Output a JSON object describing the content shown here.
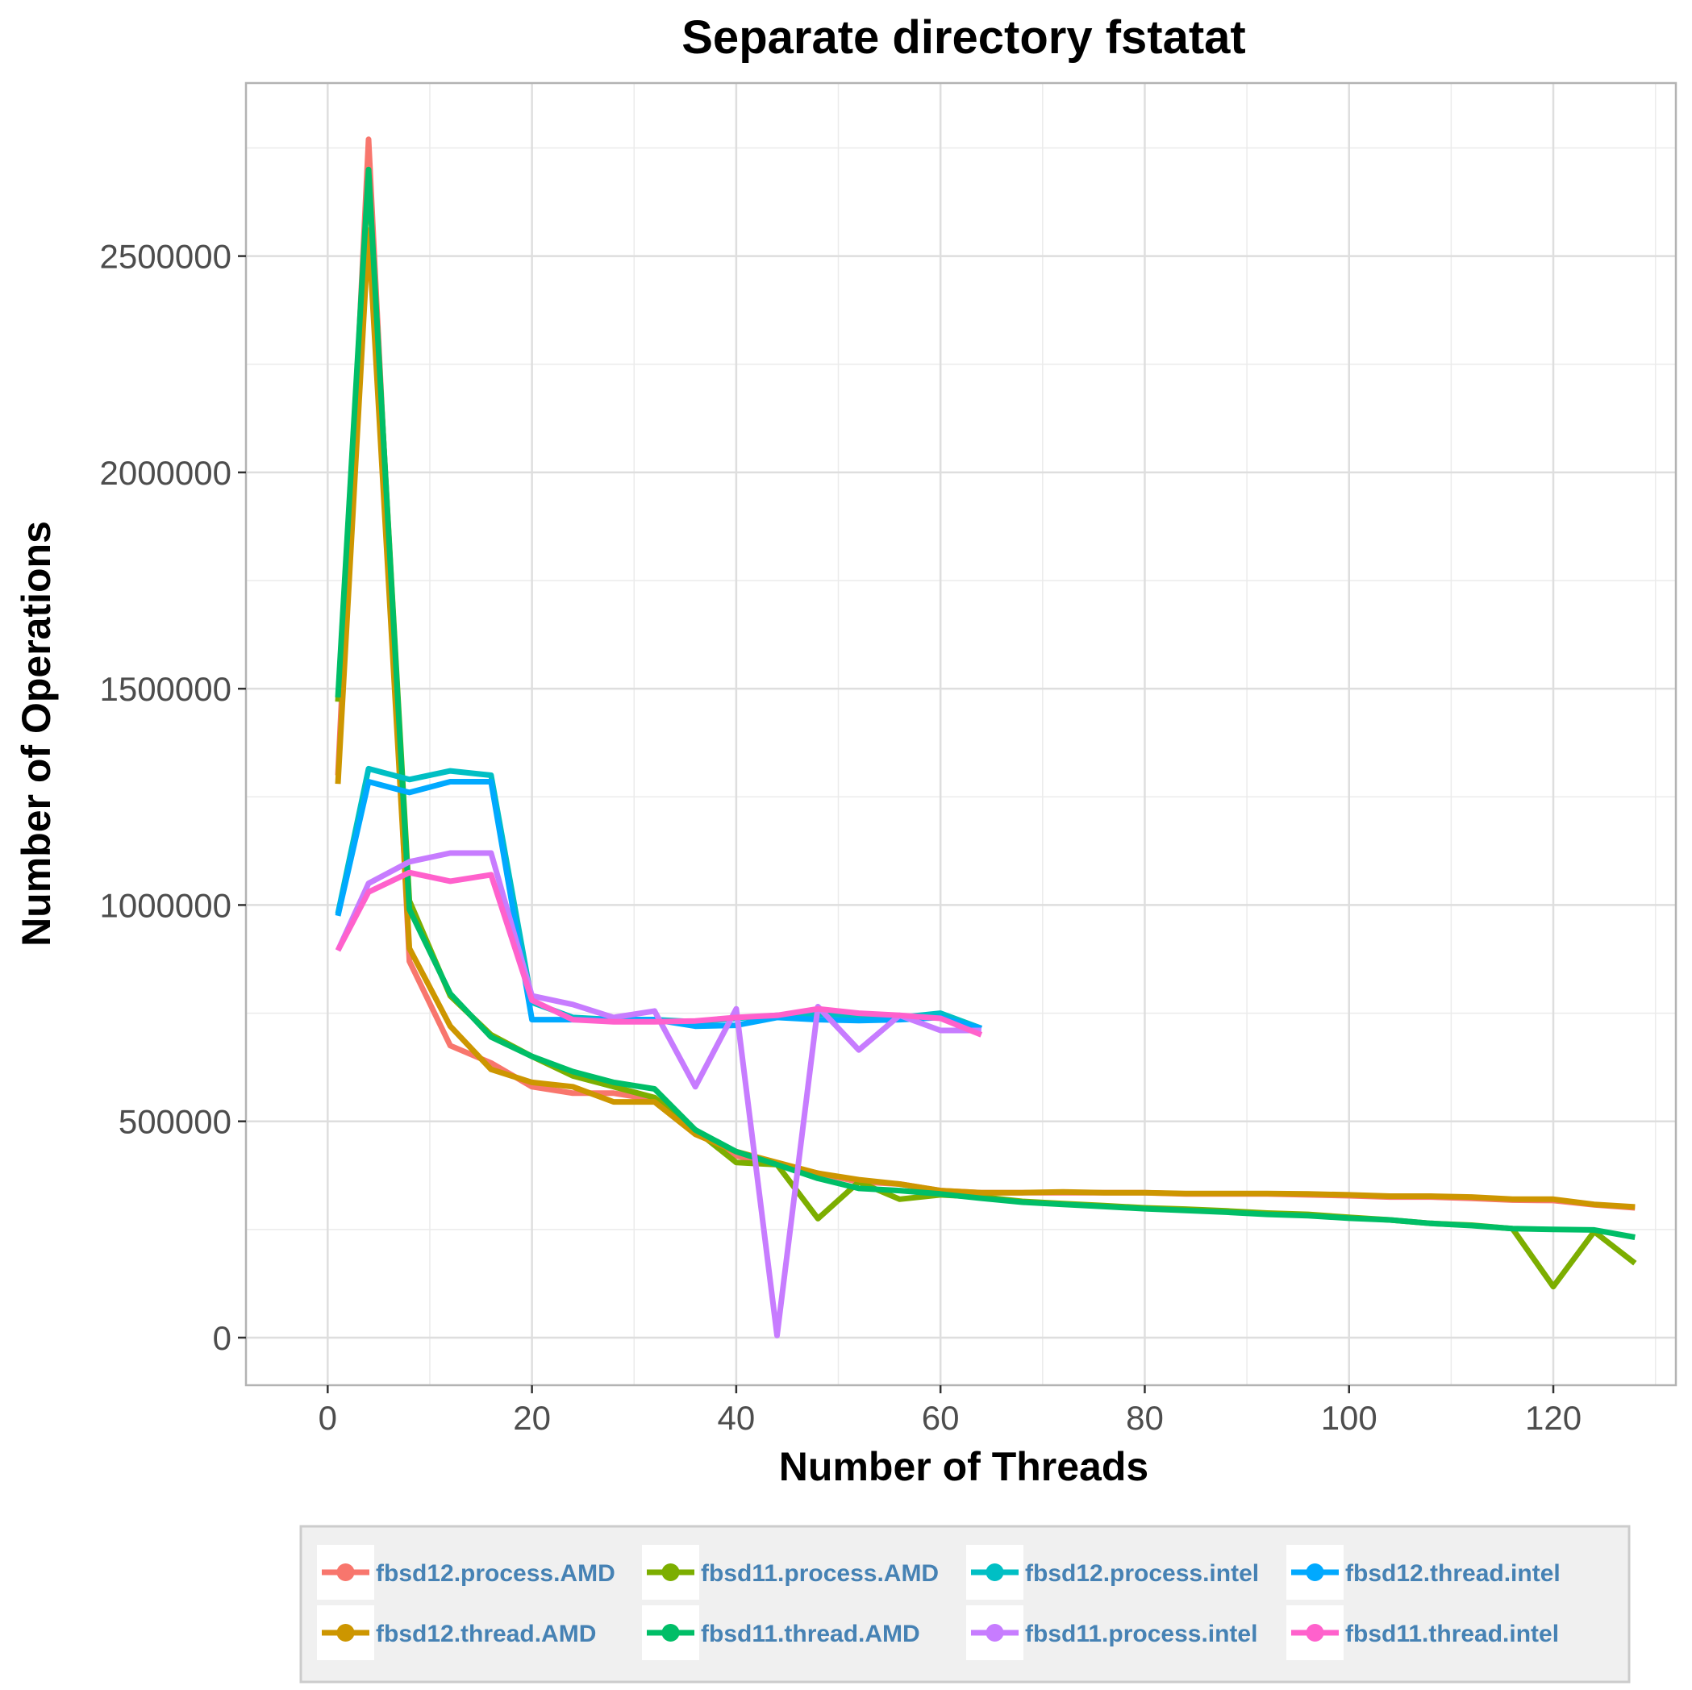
{
  "chart_data": {
    "type": "line",
    "title": "Separate directory fstatat",
    "xlabel": "Number of Threads",
    "ylabel": "Number of Operations",
    "xlim": [
      -8,
      132
    ],
    "ylim": [
      -110000,
      2900000
    ],
    "x_ticks": [
      0,
      20,
      40,
      60,
      80,
      100,
      120
    ],
    "y_ticks": [
      0,
      500000,
      1000000,
      1500000,
      2000000,
      2500000
    ],
    "x_tick_labels": [
      "0",
      "20",
      "40",
      "60",
      "80",
      "100",
      "120"
    ],
    "y_tick_labels": [
      "0",
      "500000",
      "1000000",
      "1500000",
      "2000000",
      "2500000"
    ],
    "grid": true,
    "legend_position": "bottom",
    "series": [
      {
        "name": "fbsd12.process.AMD",
        "color": "#F8766D",
        "x": [
          1,
          4,
          8,
          12,
          16,
          20,
          24,
          28,
          32,
          36,
          40,
          44,
          48,
          52,
          56,
          60,
          64,
          68,
          72,
          76,
          80,
          84,
          88,
          92,
          96,
          100,
          104,
          108,
          112,
          116,
          120,
          124,
          128
        ],
        "y": [
          1300000,
          2770000,
          870000,
          675000,
          635000,
          580000,
          565000,
          565000,
          550000,
          480000,
          420000,
          400000,
          380000,
          360000,
          355000,
          340000,
          335000,
          335000,
          335000,
          335000,
          335000,
          332000,
          332000,
          332000,
          330000,
          328000,
          325000,
          325000,
          322000,
          318000,
          317000,
          307000,
          300000
        ]
      },
      {
        "name": "fbsd11.process.AMD",
        "color": "#7CAE00",
        "x": [
          1,
          4,
          8,
          12,
          16,
          20,
          24,
          28,
          32,
          36,
          40,
          44,
          48,
          52,
          56,
          60,
          64,
          68,
          72,
          76,
          80,
          84,
          88,
          92,
          96,
          100,
          104,
          108,
          112,
          116,
          120,
          124,
          128
        ],
        "y": [
          1470000,
          2690000,
          1010000,
          790000,
          700000,
          650000,
          605000,
          580000,
          555000,
          480000,
          405000,
          400000,
          275000,
          360000,
          320000,
          330000,
          325000,
          315000,
          310000,
          305000,
          300000,
          297000,
          293000,
          288000,
          285000,
          278000,
          272000,
          264000,
          260000,
          252000,
          118000,
          245000,
          172000
        ]
      },
      {
        "name": "fbsd12.thread.AMD",
        "color": "#CD9600",
        "x": [
          1,
          4,
          8,
          12,
          16,
          20,
          24,
          28,
          32,
          36,
          40,
          44,
          48,
          52,
          56,
          60,
          64,
          68,
          72,
          76,
          80,
          84,
          88,
          92,
          96,
          100,
          104,
          108,
          112,
          116,
          120,
          124,
          128
        ],
        "y": [
          1280000,
          2560000,
          900000,
          720000,
          620000,
          590000,
          580000,
          545000,
          545000,
          470000,
          430000,
          405000,
          380000,
          365000,
          355000,
          340000,
          335000,
          335000,
          337000,
          335000,
          335000,
          333000,
          333000,
          333000,
          332000,
          330000,
          327000,
          327000,
          325000,
          320000,
          320000,
          308000,
          302000
        ]
      },
      {
        "name": "fbsd11.thread.AMD",
        "color": "#00BE67",
        "x": [
          1,
          4,
          8,
          12,
          16,
          20,
          24,
          28,
          32,
          36,
          40,
          44,
          48,
          52,
          56,
          60,
          64,
          68,
          72,
          76,
          80,
          84,
          88,
          92,
          96,
          100,
          104,
          108,
          112,
          116,
          120,
          124,
          128
        ],
        "y": [
          1480000,
          2700000,
          990000,
          795000,
          695000,
          650000,
          615000,
          590000,
          575000,
          480000,
          430000,
          400000,
          368000,
          345000,
          340000,
          332000,
          322000,
          313000,
          308000,
          303000,
          298000,
          294000,
          290000,
          285000,
          282000,
          276000,
          272000,
          264000,
          259000,
          252000,
          250000,
          249000,
          232000
        ]
      },
      {
        "name": "fbsd12.process.intel",
        "color": "#00BFC4",
        "x": [
          1,
          4,
          8,
          12,
          16,
          20,
          24,
          28,
          32,
          36,
          40,
          44,
          48,
          52,
          56,
          60,
          64
        ],
        "y": [
          980000,
          1315000,
          1290000,
          1310000,
          1300000,
          775000,
          740000,
          735000,
          735000,
          730000,
          738000,
          745000,
          748000,
          745000,
          740000,
          750000,
          715000
        ]
      },
      {
        "name": "fbsd12.thread.intel",
        "color": "#00A9FF",
        "x": [
          1,
          4,
          8,
          12,
          16,
          20,
          24,
          28,
          32,
          36,
          40,
          44,
          48,
          52,
          56,
          60,
          64
        ],
        "y": [
          975000,
          1285000,
          1260000,
          1285000,
          1285000,
          735000,
          735000,
          735000,
          735000,
          720000,
          722000,
          740000,
          735000,
          733000,
          735000,
          740000,
          715000
        ]
      },
      {
        "name": "fbsd11.process.intel",
        "color": "#C77CFF",
        "x": [
          1,
          4,
          8,
          12,
          16,
          20,
          24,
          28,
          32,
          36,
          40,
          44,
          48,
          52,
          56,
          60,
          64
        ],
        "y": [
          895000,
          1050000,
          1100000,
          1120000,
          1120000,
          790000,
          770000,
          740000,
          755000,
          580000,
          760000,
          5000,
          765000,
          665000,
          745000,
          710000,
          710000
        ]
      },
      {
        "name": "fbsd11.thread.intel",
        "color": "#FF61CC",
        "x": [
          1,
          4,
          8,
          12,
          16,
          20,
          24,
          28,
          32,
          36,
          40,
          44,
          48,
          52,
          56,
          60,
          64
        ],
        "y": [
          895000,
          1030000,
          1075000,
          1055000,
          1070000,
          780000,
          735000,
          730000,
          730000,
          732000,
          740000,
          745000,
          760000,
          750000,
          745000,
          738000,
          700000
        ]
      }
    ]
  }
}
